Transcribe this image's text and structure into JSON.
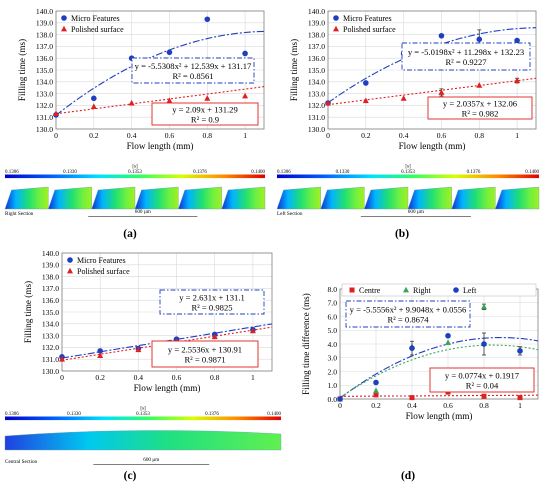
{
  "figure": {
    "panels": [
      {
        "label": "(a)",
        "strip": {
          "section": "Right Section",
          "ticks": [
            "0.1306",
            "0.1330",
            "0.1353",
            "0.1376",
            "0.1400"
          ],
          "unit": "[s]",
          "scale": "600 µm"
        }
      },
      {
        "label": "(b)",
        "strip": {
          "section": "Left Section",
          "ticks": [
            "0.1306",
            "0.1330",
            "0.1353",
            "0.1376",
            "0.1400"
          ],
          "unit": "[s]",
          "scale": "600 µm"
        }
      },
      {
        "label": "(c)",
        "strip": {
          "section": "Central Section",
          "ticks": [
            "0.1306",
            "0.1330",
            "0.1353",
            "0.1376",
            "0.1400"
          ],
          "unit": "[s]",
          "scale": "600 µm"
        }
      },
      {
        "label": "(d)"
      }
    ],
    "colors": {
      "blue": "#1f3fbf",
      "red": "#e02020",
      "green": "#3aa655",
      "grid": "#d9d9d9"
    }
  },
  "chart_data": [
    {
      "type": "scatter",
      "xlabel": "Flow length (mm)",
      "ylabel": "Filling time (ms)",
      "xlim": [
        0,
        1.1
      ],
      "ylim": [
        130.0,
        140.0
      ],
      "xticks": [
        0,
        0.2,
        0.4,
        0.6,
        0.8,
        1
      ],
      "yticks": [
        130.0,
        131.0,
        132.0,
        133.0,
        134.0,
        135.0,
        136.0,
        137.0,
        138.0,
        139.0,
        140.0
      ],
      "grid": true,
      "legend": "top-left",
      "series": [
        {
          "name": "Micro Features",
          "marker": "circle",
          "color": "#1f3fbf",
          "x": [
            0,
            0.2,
            0.4,
            0.6,
            0.8,
            1
          ],
          "y": [
            131.2,
            132.6,
            136.0,
            136.5,
            139.3,
            136.4
          ]
        },
        {
          "name": "Polished surface",
          "marker": "triangle",
          "color": "#e02020",
          "x": [
            0,
            0.2,
            0.4,
            0.6,
            0.8,
            1
          ],
          "y": [
            131.3,
            131.9,
            132.2,
            132.4,
            132.6,
            132.8
          ]
        }
      ],
      "trendlines": [
        {
          "kind": "poly2",
          "coef": [
            -5.5308,
            12.539,
            131.17
          ],
          "color": "#1f3fbf",
          "dash": "dashdot",
          "equation": "y = -5.5308x² + 12.539x + 131.17",
          "r2": "R² = 0.8561",
          "box": "upper-right"
        },
        {
          "kind": "linear",
          "coef": [
            2.09,
            131.29
          ],
          "color": "#e02020",
          "dash": "dot",
          "equation": "y = 2.09x + 131.29",
          "r2": "R² = 0.9",
          "box": "lower-right"
        }
      ]
    },
    {
      "type": "scatter",
      "xlabel": "Flow length (mm)",
      "ylabel": "Filling time (ms)",
      "xlim": [
        0,
        1.1
      ],
      "ylim": [
        130.0,
        140.0
      ],
      "xticks": [
        0,
        0.2,
        0.4,
        0.6,
        0.8,
        1
      ],
      "yticks": [
        130.0,
        131.0,
        132.0,
        133.0,
        134.0,
        135.0,
        136.0,
        137.0,
        138.0,
        139.0,
        140.0
      ],
      "grid": true,
      "legend": "top-left",
      "series": [
        {
          "name": "Micro Features",
          "marker": "circle",
          "color": "#1f3fbf",
          "x": [
            0,
            0.2,
            0.4,
            0.6,
            0.8,
            1
          ],
          "y": [
            132.2,
            133.9,
            136.4,
            137.9,
            137.6,
            137.5
          ],
          "err": [
            0,
            0,
            0.5,
            0,
            0.8,
            0
          ]
        },
        {
          "name": "Polished surface",
          "marker": "triangle",
          "color": "#e02020",
          "x": [
            0,
            0.2,
            0.4,
            0.6,
            0.8,
            1
          ],
          "y": [
            132.2,
            132.4,
            132.6,
            133.1,
            133.7,
            134.1
          ],
          "err": [
            0,
            0,
            0,
            0.3,
            0,
            0.2
          ]
        }
      ],
      "trendlines": [
        {
          "kind": "poly2",
          "coef": [
            -5.0198,
            11.298,
            132.23
          ],
          "color": "#1f3fbf",
          "dash": "dashdot",
          "equation": "y = -5.0198x² + 11.298x + 132.23",
          "r2": "R² = 0.9227",
          "box": "upper-right"
        },
        {
          "kind": "linear",
          "coef": [
            2.0357,
            132.06
          ],
          "color": "#e02020",
          "dash": "dot",
          "equation": "y = 2.0357x + 132.06",
          "r2": "R² = 0.982",
          "box": "lower-right"
        }
      ]
    },
    {
      "type": "scatter",
      "xlabel": "Flow length (mm)",
      "ylabel": "Filling time (ms)",
      "xlim": [
        0,
        1.1
      ],
      "ylim": [
        130.0,
        140.0
      ],
      "xticks": [
        0,
        0.2,
        0.4,
        0.6,
        0.8,
        1
      ],
      "yticks": [
        130.0,
        131.0,
        132.0,
        133.0,
        134.0,
        135.0,
        136.0,
        137.0,
        138.0,
        139.0,
        140.0
      ],
      "grid": true,
      "legend": "top-left",
      "series": [
        {
          "name": "Micro Features",
          "marker": "circle",
          "color": "#1f3fbf",
          "x": [
            0,
            0.2,
            0.4,
            0.6,
            0.8,
            1
          ],
          "y": [
            131.2,
            131.7,
            131.9,
            132.7,
            133.1,
            133.5
          ]
        },
        {
          "name": "Polished surface",
          "marker": "triangle",
          "color": "#e02020",
          "x": [
            0,
            0.2,
            0.4,
            0.6,
            0.8,
            1
          ],
          "y": [
            131.0,
            131.3,
            131.8,
            132.5,
            132.9,
            133.4
          ]
        }
      ],
      "trendlines": [
        {
          "kind": "linear",
          "coef": [
            2.631,
            131.1
          ],
          "color": "#1f3fbf",
          "dash": "dashdot",
          "equation": "y = 2.631x + 131.1",
          "r2": "R² = 0.9825",
          "box": "upper-right"
        },
        {
          "kind": "linear",
          "coef": [
            2.5536,
            130.91
          ],
          "color": "#e02020",
          "dash": "dot",
          "equation": "y = 2.5536x + 130.91",
          "r2": "R² = 0.9871",
          "box": "lower-right"
        }
      ]
    },
    {
      "type": "scatter",
      "xlabel": "Flow length (mm)",
      "ylabel": "Filling time difference (ms)",
      "xlim": [
        0,
        1.1
      ],
      "ylim": [
        0.0,
        8.0
      ],
      "xticks": [
        0,
        0.2,
        0.4,
        0.6,
        0.8,
        1
      ],
      "yticks": [
        0.0,
        1.0,
        2.0,
        3.0,
        4.0,
        5.0,
        6.0,
        7.0,
        8.0
      ],
      "grid": true,
      "legend": "top",
      "series": [
        {
          "name": "Centre",
          "marker": "square",
          "color": "#e02020",
          "x": [
            0,
            0.2,
            0.4,
            0.6,
            0.8,
            1
          ],
          "y": [
            0.0,
            0.3,
            0.1,
            0.5,
            0.2,
            0.1
          ]
        },
        {
          "name": "Right",
          "marker": "triangle",
          "color": "#3aa655",
          "x": [
            0,
            0.2,
            0.4,
            0.6,
            0.8,
            1
          ],
          "y": [
            0.0,
            0.6,
            3.8,
            4.1,
            6.7,
            3.6
          ],
          "err": [
            0,
            0,
            0,
            0,
            0.2,
            0
          ]
        },
        {
          "name": "Left",
          "marker": "circle",
          "color": "#1f3fbf",
          "x": [
            0,
            0.2,
            0.4,
            0.6,
            0.8,
            1
          ],
          "y": [
            0.0,
            1.2,
            3.7,
            4.6,
            4.0,
            3.5
          ],
          "err": [
            0,
            0,
            0.5,
            0,
            0.8,
            0.3
          ]
        }
      ],
      "trendlines": [
        {
          "kind": "poly2",
          "coef": [
            -5.5556,
            9.9048,
            0.0556
          ],
          "color": "#1f3fbf",
          "dash": "dashdot",
          "equation": "y = -5.5556x² + 9.9048x + 0.0556",
          "r2": "R² = 0.8674",
          "box": "upper-left"
        },
        {
          "kind": "poly2",
          "coef": [
            -5.3,
            9.0,
            0.1
          ],
          "color": "#3aa655",
          "dash": "dot",
          "equation": "",
          "r2": "",
          "box": "none"
        },
        {
          "kind": "linear",
          "coef": [
            0.0774,
            0.1917
          ],
          "color": "#e02020",
          "dash": "dot",
          "equation": "y = 0.0774x + 0.1917",
          "r2": "R² = 0.04",
          "box": "lower-right"
        }
      ]
    }
  ]
}
